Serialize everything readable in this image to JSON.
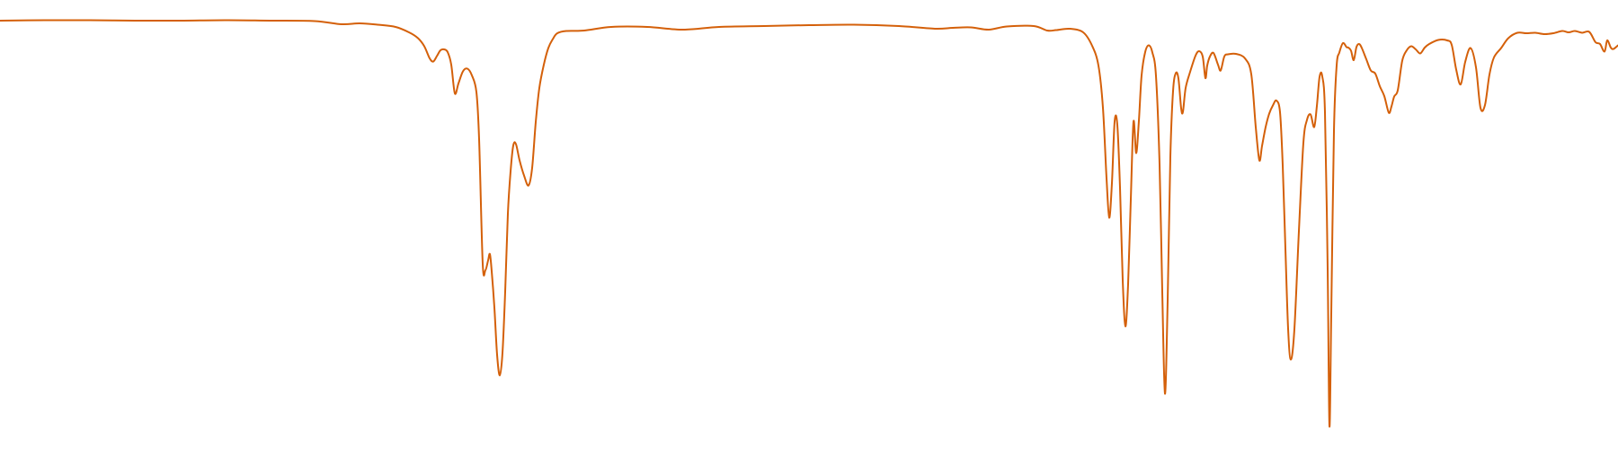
{
  "chart_data": {
    "type": "line",
    "title": "",
    "xlabel": "",
    "ylabel": "",
    "grid": false,
    "legend": "none",
    "xlim": [
      0,
      1800
    ],
    "ylim": [
      0,
      100
    ],
    "series": [
      {
        "color": "#d4600a",
        "points": [
          [
            0,
            95.4
          ],
          [
            50,
            95.5
          ],
          [
            100,
            95.5
          ],
          [
            150,
            95.4
          ],
          [
            200,
            95.4
          ],
          [
            250,
            95.5
          ],
          [
            300,
            95.4
          ],
          [
            350,
            95.3
          ],
          [
            380,
            94.6
          ],
          [
            400,
            94.8
          ],
          [
            420,
            94.5
          ],
          [
            440,
            94.0
          ],
          [
            455,
            92.8
          ],
          [
            465,
            91.5
          ],
          [
            472,
            89.7
          ],
          [
            478,
            87.0
          ],
          [
            482,
            86.3
          ],
          [
            486,
            87.5
          ],
          [
            490,
            88.8
          ],
          [
            494,
            89.0
          ],
          [
            498,
            88.4
          ],
          [
            502,
            85.6
          ],
          [
            506,
            79.2
          ],
          [
            510,
            81.4
          ],
          [
            515,
            84.1
          ],
          [
            520,
            84.7
          ],
          [
            525,
            83.2
          ],
          [
            530,
            79.5
          ],
          [
            533,
            69.0
          ],
          [
            537,
            41.3
          ],
          [
            540,
            39.8
          ],
          [
            543,
            42.0
          ],
          [
            545,
            43.4
          ],
          [
            547,
            39.6
          ],
          [
            550,
            31.5
          ],
          [
            553,
            21.0
          ],
          [
            556,
            16.4
          ],
          [
            559,
            21.4
          ],
          [
            562,
            35.0
          ],
          [
            565,
            52.4
          ],
          [
            568,
            61.8
          ],
          [
            571,
            67.6
          ],
          [
            574,
            67.9
          ],
          [
            578,
            64.3
          ],
          [
            583,
            60.9
          ],
          [
            588,
            58.7
          ],
          [
            592,
            62.6
          ],
          [
            596,
            72.8
          ],
          [
            600,
            80.4
          ],
          [
            605,
            85.6
          ],
          [
            610,
            89.3
          ],
          [
            615,
            91.3
          ],
          [
            620,
            92.6
          ],
          [
            630,
            93.1
          ],
          [
            650,
            93.2
          ],
          [
            680,
            94.0
          ],
          [
            720,
            94.0
          ],
          [
            760,
            93.4
          ],
          [
            800,
            94.0
          ],
          [
            850,
            94.2
          ],
          [
            900,
            94.4
          ],
          [
            950,
            94.5
          ],
          [
            1000,
            94.2
          ],
          [
            1040,
            93.6
          ],
          [
            1060,
            93.8
          ],
          [
            1080,
            93.9
          ],
          [
            1100,
            93.4
          ],
          [
            1120,
            94.1
          ],
          [
            1150,
            94.2
          ],
          [
            1165,
            93.2
          ],
          [
            1175,
            93.3
          ],
          [
            1190,
            93.6
          ],
          [
            1205,
            92.8
          ],
          [
            1215,
            89.8
          ],
          [
            1222,
            85.4
          ],
          [
            1227,
            76.0
          ],
          [
            1231,
            60.3
          ],
          [
            1234,
            51.5
          ],
          [
            1237,
            59.2
          ],
          [
            1240,
            72.9
          ],
          [
            1243,
            72.2
          ],
          [
            1246,
            58.2
          ],
          [
            1249,
            37.6
          ],
          [
            1252,
            27.3
          ],
          [
            1255,
            36.7
          ],
          [
            1258,
            55.6
          ],
          [
            1261,
            72.9
          ],
          [
            1264,
            65.9
          ],
          [
            1267,
            73.1
          ],
          [
            1270,
            83.2
          ],
          [
            1274,
            88.4
          ],
          [
            1278,
            89.9
          ],
          [
            1282,
            88.3
          ],
          [
            1286,
            83.1
          ],
          [
            1290,
            63.4
          ],
          [
            1293,
            35.0
          ],
          [
            1296,
            12.3
          ],
          [
            1299,
            33.0
          ],
          [
            1302,
            65.1
          ],
          [
            1305,
            79.7
          ],
          [
            1308,
            83.7
          ],
          [
            1311,
            82.5
          ],
          [
            1314,
            75.9
          ],
          [
            1316,
            75.1
          ],
          [
            1319,
            80.4
          ],
          [
            1324,
            84.0
          ],
          [
            1330,
            87.6
          ],
          [
            1334,
            88.6
          ],
          [
            1338,
            87.4
          ],
          [
            1341,
            82.6
          ],
          [
            1343,
            85.4
          ],
          [
            1346,
            87.4
          ],
          [
            1350,
            88.2
          ],
          [
            1355,
            85.6
          ],
          [
            1358,
            84.3
          ],
          [
            1362,
            87.4
          ],
          [
            1366,
            87.9
          ],
          [
            1375,
            88.0
          ],
          [
            1385,
            87.0
          ],
          [
            1392,
            83.5
          ],
          [
            1397,
            71.7
          ],
          [
            1401,
            64.3
          ],
          [
            1404,
            67.5
          ],
          [
            1408,
            71.7
          ],
          [
            1412,
            74.7
          ],
          [
            1416,
            76.5
          ],
          [
            1420,
            77.6
          ],
          [
            1424,
            75.0
          ],
          [
            1427,
            63.2
          ],
          [
            1430,
            44.6
          ],
          [
            1433,
            26.8
          ],
          [
            1436,
            19.9
          ],
          [
            1440,
            26.7
          ],
          [
            1445,
            48.5
          ],
          [
            1450,
            68.2
          ],
          [
            1454,
            73.3
          ],
          [
            1458,
            74.5
          ],
          [
            1462,
            71.7
          ],
          [
            1465,
            76.4
          ],
          [
            1468,
            82.9
          ],
          [
            1471,
            83.0
          ],
          [
            1474,
            75.0
          ],
          [
            1477,
            40.1
          ],
          [
            1479,
            5.1
          ],
          [
            1481,
            30.0
          ],
          [
            1484,
            70.8
          ],
          [
            1487,
            85.4
          ],
          [
            1490,
            88.3
          ],
          [
            1494,
            90.4
          ],
          [
            1498,
            89.5
          ],
          [
            1500,
            89.4
          ],
          [
            1503,
            88.7
          ],
          [
            1506,
            86.6
          ],
          [
            1509,
            89.5
          ],
          [
            1512,
            90.2
          ],
          [
            1515,
            89.3
          ],
          [
            1520,
            86.8
          ],
          [
            1525,
            84.3
          ],
          [
            1530,
            83.6
          ],
          [
            1535,
            80.8
          ],
          [
            1540,
            78.6
          ],
          [
            1545,
            74.9
          ],
          [
            1548,
            76.3
          ],
          [
            1551,
            78.5
          ],
          [
            1555,
            79.9
          ],
          [
            1560,
            86.5
          ],
          [
            1565,
            88.8
          ],
          [
            1570,
            89.7
          ],
          [
            1575,
            89.0
          ],
          [
            1580,
            88.1
          ],
          [
            1585,
            89.4
          ],
          [
            1590,
            90.2
          ],
          [
            1600,
            91.1
          ],
          [
            1610,
            91.0
          ],
          [
            1615,
            90.0
          ],
          [
            1620,
            84.5
          ],
          [
            1625,
            81.2
          ],
          [
            1630,
            86.2
          ],
          [
            1636,
            89.3
          ],
          [
            1642,
            85.0
          ],
          [
            1647,
            76.0
          ],
          [
            1652,
            76.6
          ],
          [
            1657,
            83.4
          ],
          [
            1662,
            87.2
          ],
          [
            1670,
            89.3
          ],
          [
            1678,
            91.5
          ],
          [
            1688,
            92.7
          ],
          [
            1698,
            92.6
          ],
          [
            1708,
            92.7
          ],
          [
            1718,
            92.4
          ],
          [
            1728,
            92.6
          ],
          [
            1738,
            93.1
          ],
          [
            1745,
            92.8
          ],
          [
            1752,
            93.1
          ],
          [
            1760,
            92.7
          ],
          [
            1768,
            92.9
          ],
          [
            1775,
            90.6
          ],
          [
            1780,
            90.2
          ],
          [
            1785,
            88.5
          ],
          [
            1788,
            91.0
          ],
          [
            1792,
            89.4
          ],
          [
            1795,
            89.1
          ],
          [
            1800,
            89.9
          ]
        ]
      }
    ]
  }
}
